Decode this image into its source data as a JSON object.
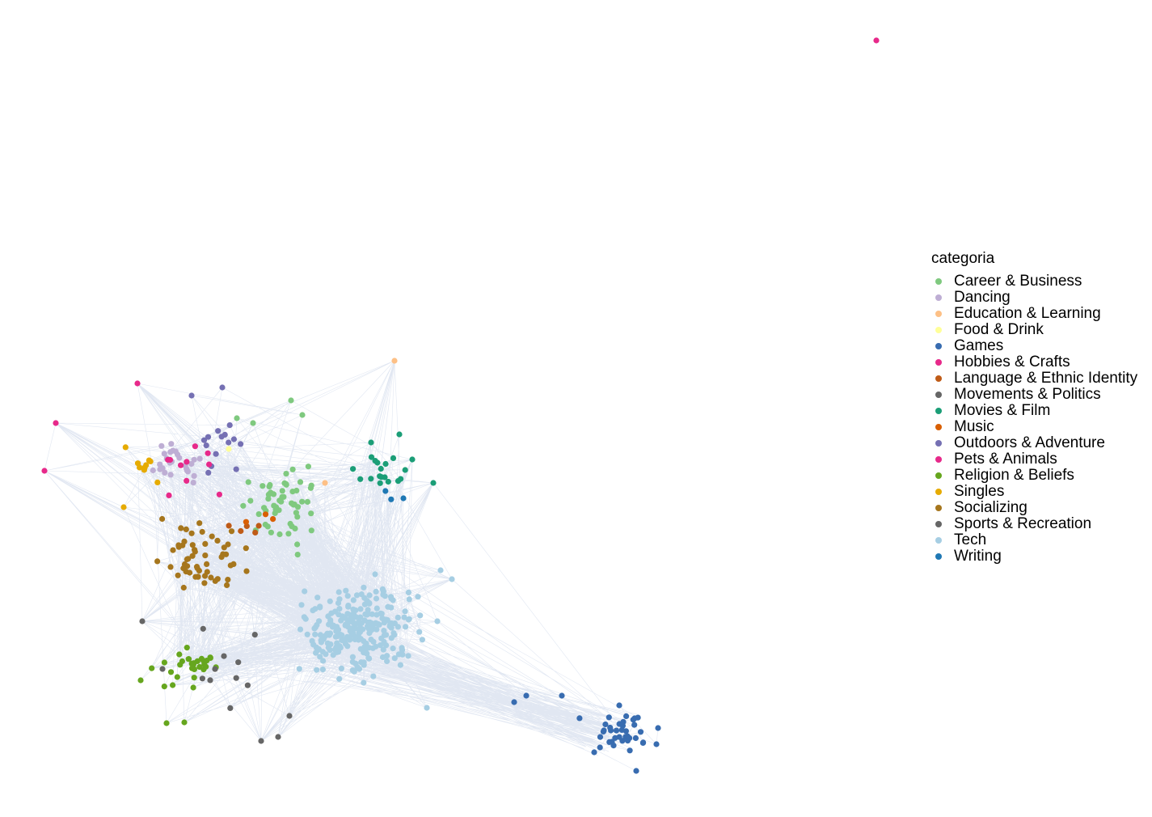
{
  "legend": {
    "title": "categoria",
    "items": [
      {
        "label": "Career & Business",
        "color": "#7fc97f"
      },
      {
        "label": "Dancing",
        "color": "#beaed4"
      },
      {
        "label": "Education & Learning",
        "color": "#fdc086"
      },
      {
        "label": "Food & Drink",
        "color": "#ffff99"
      },
      {
        "label": "Games",
        "color": "#386cb0"
      },
      {
        "label": "Hobbies & Crafts",
        "color": "#e7298a"
      },
      {
        "label": "Language & Ethnic Identity",
        "color": "#bf5b17"
      },
      {
        "label": "Movements & Politics",
        "color": "#666666"
      },
      {
        "label": "Movies & Film",
        "color": "#1b9e77"
      },
      {
        "label": "Music",
        "color": "#d95f02"
      },
      {
        "label": "Outdoors & Adventure",
        "color": "#7570b3"
      },
      {
        "label": "Pets & Animals",
        "color": "#e7298a"
      },
      {
        "label": "Religion & Beliefs",
        "color": "#66a61e"
      },
      {
        "label": "Singles",
        "color": "#e6ab02"
      },
      {
        "label": "Socializing",
        "color": "#a6761d"
      },
      {
        "label": "Sports & Recreation",
        "color": "#666666"
      },
      {
        "label": "Tech",
        "color": "#a6cee3"
      },
      {
        "label": "Writing",
        "color": "#1f78b4"
      }
    ]
  },
  "graph": {
    "edge_color": "#c8d3e8"
  }
}
